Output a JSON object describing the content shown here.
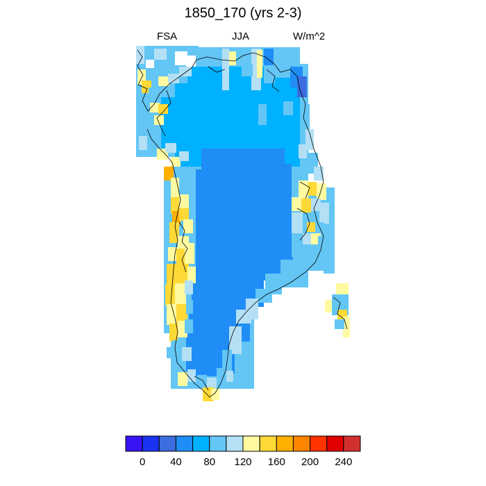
{
  "title": "1850_170 (yrs 2-3)",
  "left_string": "FSA",
  "center_string": "JJA",
  "right_string": "W/m^2",
  "colorbar": {
    "colors": [
      "#3a13f5",
      "#1a33f0",
      "#3d6cdf",
      "#1f8df5",
      "#00b1ff",
      "#63c6f5",
      "#b4e0f5",
      "#fffaa0",
      "#ffd936",
      "#ffaf00",
      "#ff8500",
      "#ff3300",
      "#e00000",
      "#d23030"
    ],
    "tick_labels": [
      "0",
      "40",
      "80",
      "120",
      "160",
      "200",
      "240"
    ]
  },
  "map_colors": {
    "dark_blue": "#3d6cdf",
    "mid_blue": "#1f8df5",
    "sky_blue": "#00b1ff",
    "light_blue": "#63c6f5",
    "pale_blue": "#b4e0f5",
    "pale_yellow": "#fffaa0",
    "yellow": "#ffd936",
    "orange": "#ffaf00"
  }
}
